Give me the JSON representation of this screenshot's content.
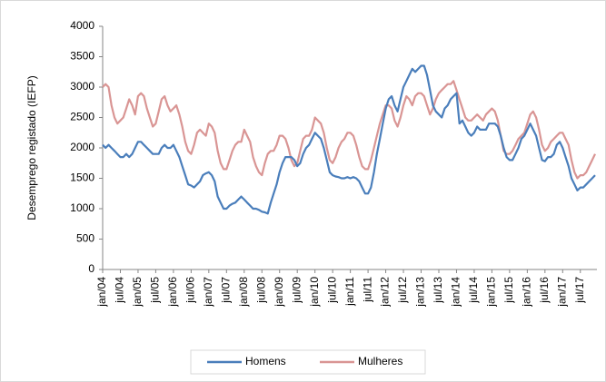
{
  "chart_data": {
    "type": "line",
    "y_label": "Desemprego registado (IEFP)",
    "categories": [
      "jan/04",
      null,
      null,
      null,
      null,
      null,
      "jul/04",
      null,
      null,
      null,
      null,
      null,
      "jan/05",
      null,
      null,
      null,
      null,
      null,
      "jul/05",
      null,
      null,
      null,
      null,
      null,
      "jan/06",
      null,
      null,
      null,
      null,
      null,
      "jul/06",
      null,
      null,
      null,
      null,
      null,
      "jan/07",
      null,
      null,
      null,
      null,
      null,
      "jul/07",
      null,
      null,
      null,
      null,
      null,
      "jan/08",
      null,
      null,
      null,
      null,
      null,
      "jul/08",
      null,
      null,
      null,
      null,
      null,
      "jan/09",
      null,
      null,
      null,
      null,
      null,
      "jul/09",
      null,
      null,
      null,
      null,
      null,
      "jan/10",
      null,
      null,
      null,
      null,
      null,
      "jul/10",
      null,
      null,
      null,
      null,
      null,
      "jan/11",
      null,
      null,
      null,
      null,
      null,
      "jul/11",
      null,
      null,
      null,
      null,
      null,
      "jan/12",
      null,
      null,
      null,
      null,
      null,
      "jul/12",
      null,
      null,
      null,
      null,
      null,
      "jan/13",
      null,
      null,
      null,
      null,
      null,
      "jul/13",
      null,
      null,
      null,
      null,
      null,
      "jan/14",
      null,
      null,
      null,
      null,
      null,
      "jul/14",
      null,
      null,
      null,
      null,
      null,
      "jan/15",
      null,
      null,
      null,
      null,
      null,
      "jul/15",
      null,
      null,
      null,
      null,
      null,
      "jan/16",
      null,
      null,
      null,
      null,
      null,
      "jul/16",
      null,
      null,
      null,
      null,
      null,
      "jan/17",
      null,
      null,
      null,
      null,
      null,
      "jul/17",
      null,
      null,
      null,
      null,
      null
    ],
    "series": [
      {
        "name": "Homens",
        "color": "#4a7ebb",
        "values": [
          2050,
          2000,
          2050,
          2000,
          1950,
          1900,
          1850,
          1850,
          1900,
          1850,
          1900,
          2000,
          2100,
          2100,
          2050,
          2000,
          1950,
          1900,
          1900,
          1900,
          2000,
          2050,
          2000,
          2000,
          2050,
          1950,
          1850,
          1700,
          1550,
          1400,
          1380,
          1350,
          1400,
          1450,
          1550,
          1580,
          1600,
          1550,
          1450,
          1200,
          1100,
          1000,
          1000,
          1050,
          1080,
          1100,
          1150,
          1200,
          1150,
          1100,
          1050,
          1000,
          1000,
          980,
          950,
          940,
          920,
          1100,
          1250,
          1400,
          1600,
          1750,
          1850,
          1850,
          1850,
          1800,
          1700,
          1750,
          1900,
          2000,
          2050,
          2150,
          2250,
          2200,
          2150,
          2000,
          1800,
          1600,
          1550,
          1530,
          1520,
          1500,
          1500,
          1520,
          1500,
          1520,
          1500,
          1450,
          1350,
          1250,
          1250,
          1350,
          1600,
          1900,
          2150,
          2400,
          2650,
          2800,
          2850,
          2700,
          2600,
          2800,
          3000,
          3100,
          3200,
          3300,
          3250,
          3300,
          3350,
          3350,
          3200,
          2950,
          2700,
          2600,
          2550,
          2500,
          2650,
          2700,
          2800,
          2850,
          2900,
          2400,
          2450,
          2350,
          2250,
          2200,
          2250,
          2350,
          2300,
          2300,
          2300,
          2400,
          2400,
          2400,
          2350,
          2200,
          2000,
          1850,
          1800,
          1800,
          1900,
          2000,
          2150,
          2200,
          2300,
          2400,
          2300,
          2200,
          2000,
          1800,
          1780,
          1850,
          1850,
          1900,
          2050,
          2100,
          2000,
          1850,
          1700,
          1500,
          1400,
          1300,
          1350,
          1350,
          1400,
          1450,
          1500,
          1550
        ]
      },
      {
        "name": "Mulheres",
        "color": "#d99594",
        "values": [
          3000,
          3050,
          3000,
          2700,
          2500,
          2400,
          2450,
          2500,
          2650,
          2800,
          2700,
          2550,
          2850,
          2900,
          2850,
          2650,
          2500,
          2350,
          2400,
          2600,
          2800,
          2850,
          2700,
          2600,
          2650,
          2700,
          2550,
          2350,
          2100,
          1950,
          1900,
          2050,
          2250,
          2300,
          2250,
          2200,
          2400,
          2350,
          2250,
          1950,
          1750,
          1650,
          1650,
          1800,
          1950,
          2050,
          2100,
          2100,
          2300,
          2200,
          2100,
          1850,
          1700,
          1600,
          1550,
          1750,
          1900,
          1950,
          1950,
          2050,
          2200,
          2200,
          2150,
          2000,
          1800,
          1700,
          1750,
          1950,
          2150,
          2200,
          2200,
          2300,
          2500,
          2450,
          2400,
          2250,
          2000,
          1800,
          1750,
          1850,
          2000,
          2100,
          2150,
          2250,
          2250,
          2200,
          2050,
          1850,
          1700,
          1650,
          1650,
          1800,
          2000,
          2200,
          2400,
          2550,
          2700,
          2700,
          2650,
          2450,
          2350,
          2500,
          2700,
          2850,
          2800,
          2700,
          2850,
          2900,
          2900,
          2850,
          2700,
          2550,
          2650,
          2800,
          2900,
          2950,
          3000,
          3050,
          3050,
          3100,
          2950,
          2800,
          2650,
          2500,
          2450,
          2450,
          2500,
          2550,
          2500,
          2450,
          2550,
          2600,
          2650,
          2600,
          2450,
          2200,
          1950,
          1900,
          1900,
          1950,
          2050,
          2150,
          2200,
          2250,
          2400,
          2550,
          2600,
          2500,
          2300,
          2050,
          1950,
          2000,
          2100,
          2150,
          2200,
          2250,
          2250,
          2150,
          2050,
          1800,
          1600,
          1500,
          1550,
          1550,
          1600,
          1700,
          1800,
          1900
        ]
      }
    ],
    "ylim": [
      0,
      4000
    ],
    "yticks": [
      0,
      500,
      1000,
      1500,
      2000,
      2500,
      3000,
      3500,
      4000
    ],
    "legend": "bottom"
  }
}
